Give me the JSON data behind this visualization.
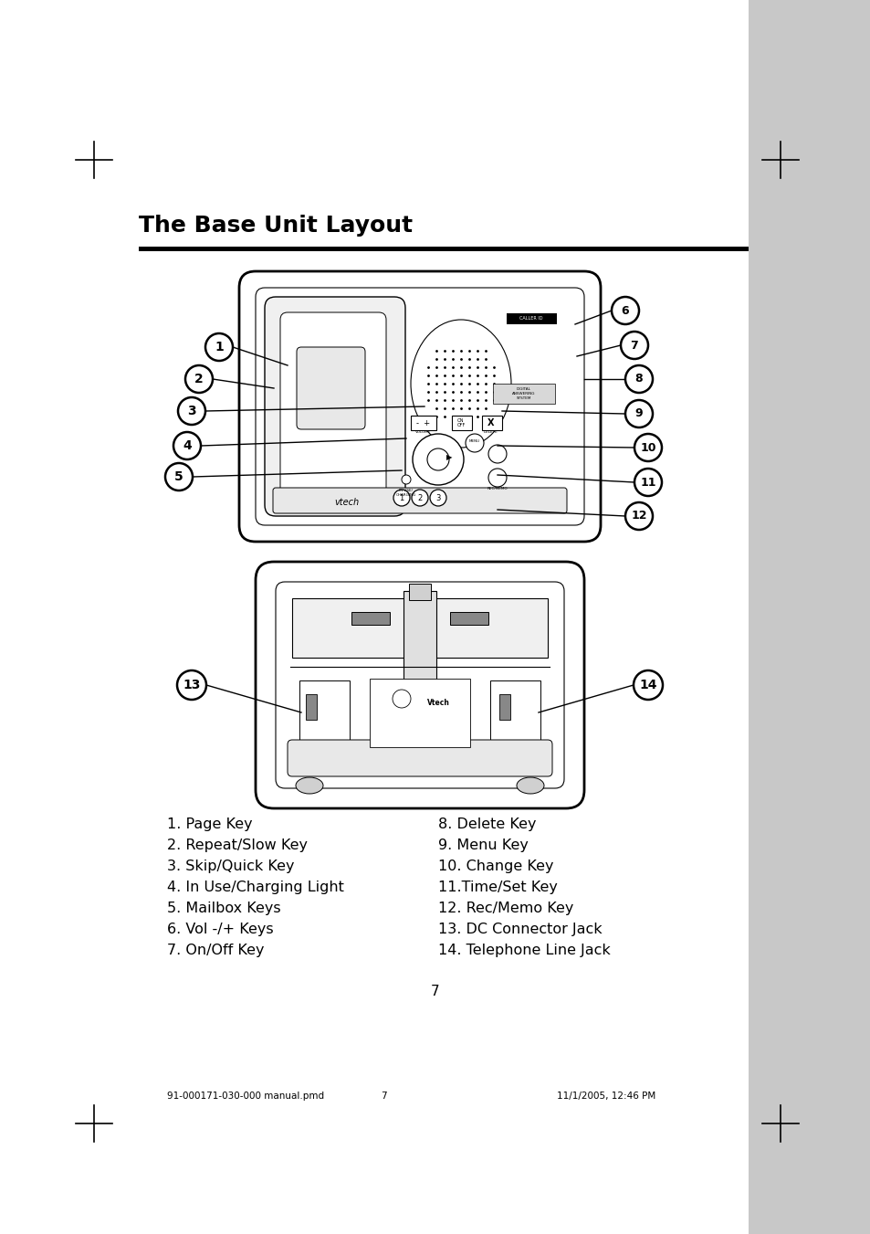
{
  "title": "The Base Unit Layout",
  "background_color": "#ffffff",
  "sidebar_color": "#c8c8c8",
  "page_number": "7",
  "footer_left": "91-000171-030-000 manual.pmd",
  "footer_center": "7",
  "footer_right": "11/1/2005, 12:46 PM",
  "legend_col1": [
    "1. Page Key",
    "2. Repeat/Slow Key",
    "3. Skip/Quick Key",
    "4. In Use/Charging Light",
    "5. Mailbox Keys",
    "6. Vol -/+ Keys",
    "7. On/Off Key"
  ],
  "legend_col2": [
    "8. Delete Key",
    "9. Menu Key",
    "10. Change Key",
    "11.Time/Set Key",
    "12. Rec/Memo Key",
    "13. DC Connector Jack",
    "14. Telephone Line Jack"
  ]
}
